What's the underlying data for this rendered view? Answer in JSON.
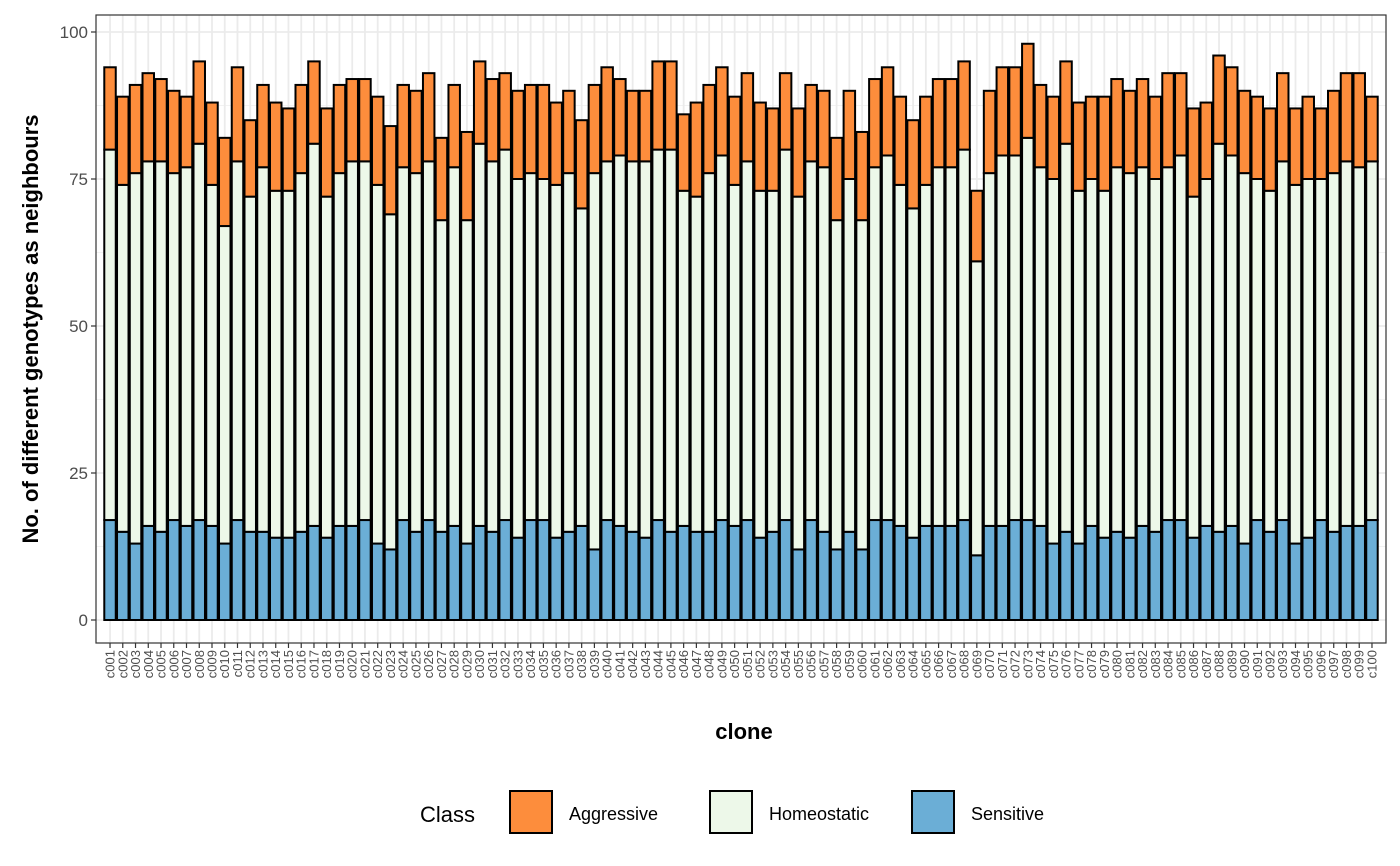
{
  "chart_data": {
    "type": "bar",
    "stacked": true,
    "xlabel": "clone",
    "ylabel": "No. of different genotypes as neighbours",
    "ylim": [
      0,
      100
    ],
    "yticks": [
      "0",
      "25",
      "50",
      "75",
      "100"
    ],
    "grid": true,
    "legend": {
      "title": "Class",
      "position": "bottom"
    },
    "categories": [
      "c001",
      "c002",
      "c003",
      "c004",
      "c005",
      "c006",
      "c007",
      "c008",
      "c009",
      "c010",
      "c011",
      "c012",
      "c013",
      "c014",
      "c015",
      "c016",
      "c017",
      "c018",
      "c019",
      "c020",
      "c021",
      "c022",
      "c023",
      "c024",
      "c025",
      "c026",
      "c027",
      "c028",
      "c029",
      "c030",
      "c031",
      "c032",
      "c033",
      "c034",
      "c035",
      "c036",
      "c037",
      "c038",
      "c039",
      "c040",
      "c041",
      "c042",
      "c043",
      "c044",
      "c045",
      "c046",
      "c047",
      "c048",
      "c049",
      "c050",
      "c051",
      "c052",
      "c053",
      "c054",
      "c055",
      "c056",
      "c057",
      "c058",
      "c059",
      "c060",
      "c061",
      "c062",
      "c063",
      "c064",
      "c065",
      "c066",
      "c067",
      "c068",
      "c069",
      "c070",
      "c071",
      "c072",
      "c073",
      "c074",
      "c075",
      "c076",
      "c077",
      "c078",
      "c079",
      "c080",
      "c081",
      "c082",
      "c083",
      "c084",
      "c085",
      "c086",
      "c087",
      "c088",
      "c089",
      "c090",
      "c091",
      "c092",
      "c093",
      "c094",
      "c095",
      "c096",
      "c097",
      "c098",
      "c099",
      "c100"
    ],
    "series": [
      {
        "name": "Sensitive",
        "color": "#6BAED6",
        "values": [
          17,
          15,
          13,
          16,
          15,
          17,
          16,
          17,
          16,
          13,
          17,
          15,
          15,
          14,
          14,
          15,
          16,
          14,
          16,
          16,
          17,
          13,
          12,
          17,
          15,
          17,
          15,
          16,
          13,
          16,
          15,
          17,
          14,
          17,
          17,
          14,
          15,
          16,
          12,
          17,
          16,
          15,
          14,
          17,
          15,
          16,
          15,
          15,
          17,
          16,
          17,
          14,
          15,
          17,
          12,
          17,
          15,
          12,
          15,
          12,
          17,
          17,
          16,
          14,
          16,
          16,
          16,
          17,
          11,
          16,
          16,
          17,
          17,
          16,
          13,
          15,
          13,
          16,
          14,
          15,
          14,
          16,
          15,
          17,
          17,
          14,
          16,
          15,
          16,
          13,
          17,
          15,
          17,
          13,
          14,
          17,
          15,
          16,
          16,
          17
        ]
      },
      {
        "name": "Homeostatic",
        "color": "#EDF8E9",
        "values": [
          63,
          59,
          63,
          62,
          63,
          59,
          61,
          64,
          58,
          54,
          61,
          57,
          62,
          59,
          59,
          61,
          65,
          58,
          60,
          62,
          61,
          61,
          57,
          60,
          61,
          61,
          53,
          61,
          55,
          65,
          63,
          63,
          61,
          59,
          58,
          60,
          61,
          54,
          64,
          61,
          63,
          63,
          64,
          63,
          65,
          57,
          57,
          61,
          62,
          58,
          61,
          59,
          58,
          63,
          60,
          61,
          62,
          56,
          60,
          56,
          60,
          62,
          58,
          56,
          58,
          61,
          61,
          63,
          50,
          60,
          63,
          62,
          65,
          61,
          62,
          66,
          60,
          59,
          59,
          62,
          62,
          61,
          60,
          60,
          62,
          58,
          59,
          66,
          63,
          63,
          58,
          58,
          61,
          61,
          61,
          58,
          61,
          62,
          61,
          61
        ]
      },
      {
        "name": "Aggressive",
        "color": "#FD8D3C",
        "values": [
          14,
          15,
          15,
          15,
          14,
          14,
          12,
          14,
          14,
          15,
          16,
          13,
          14,
          15,
          14,
          15,
          14,
          15,
          15,
          14,
          14,
          15,
          15,
          14,
          14,
          15,
          14,
          14,
          15,
          14,
          14,
          13,
          15,
          15,
          16,
          14,
          14,
          15,
          15,
          16,
          13,
          12,
          12,
          15,
          15,
          13,
          16,
          15,
          15,
          15,
          15,
          15,
          14,
          13,
          15,
          13,
          13,
          14,
          15,
          15,
          15,
          15,
          15,
          15,
          15,
          15,
          15,
          15,
          12,
          14,
          15,
          15,
          16,
          14,
          14,
          14,
          15,
          14,
          16,
          15,
          14,
          15,
          14,
          16,
          14,
          15,
          13,
          15,
          15,
          14,
          14,
          14,
          15,
          13,
          14,
          12,
          14,
          15,
          16,
          11
        ]
      }
    ],
    "legend_order": [
      "Aggressive",
      "Homeostatic",
      "Sensitive"
    ]
  }
}
